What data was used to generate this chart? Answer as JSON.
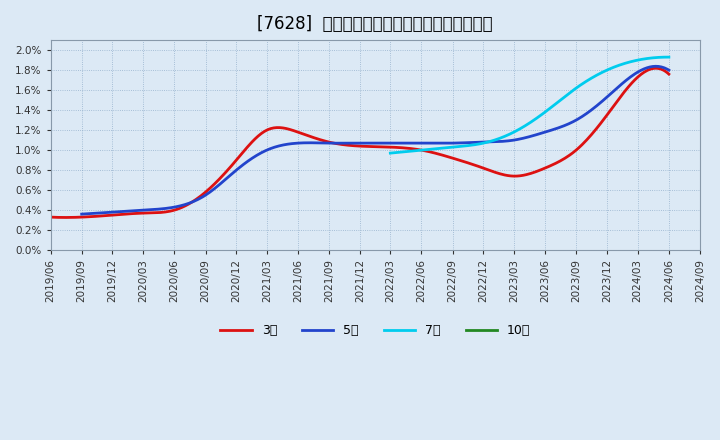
{
  "title": "[7628]  当期純利益マージンの標準偏差の推移",
  "background_color": "#dce9f5",
  "plot_bg_color": "#dce9f5",
  "grid_color": "#7799bb",
  "ylim": [
    0.0,
    0.021
  ],
  "yticks": [
    0.0,
    0.002,
    0.004,
    0.006,
    0.008,
    0.01,
    0.012,
    0.014,
    0.016,
    0.018,
    0.02
  ],
  "ytick_labels": [
    "0.0%",
    "0.2%",
    "0.4%",
    "0.6%",
    "0.8%",
    "1.0%",
    "1.2%",
    "1.4%",
    "1.6%",
    "1.8%",
    "2.0%"
  ],
  "series_3year": {
    "color": "#dd1111",
    "label": "3年",
    "dates": [
      "2019-06-01",
      "2019-09-01",
      "2019-12-01",
      "2020-03-01",
      "2020-06-01",
      "2020-09-01",
      "2020-12-01",
      "2021-03-01",
      "2021-06-01",
      "2021-09-01",
      "2021-12-01",
      "2022-03-01",
      "2022-06-01",
      "2022-09-01",
      "2022-12-01",
      "2023-03-01",
      "2023-06-01",
      "2023-09-01",
      "2023-12-01",
      "2024-03-01",
      "2024-06-01"
    ],
    "values": [
      0.0033,
      0.0033,
      0.0035,
      0.0037,
      0.004,
      0.0058,
      0.009,
      0.012,
      0.0118,
      0.0108,
      0.0104,
      0.0103,
      0.01,
      0.0092,
      0.0082,
      0.0074,
      0.0082,
      0.01,
      0.0135,
      0.0173,
      0.0176
    ]
  },
  "series_5year": {
    "color": "#2244cc",
    "label": "5年",
    "dates": [
      "2019-09-01",
      "2019-12-01",
      "2020-03-01",
      "2020-06-01",
      "2020-09-01",
      "2020-12-01",
      "2021-03-01",
      "2021-06-01",
      "2021-09-01",
      "2021-12-01",
      "2022-03-01",
      "2022-06-01",
      "2022-09-01",
      "2022-12-01",
      "2023-03-01",
      "2023-06-01",
      "2023-09-01",
      "2023-12-01",
      "2024-03-01",
      "2024-06-01"
    ],
    "values": [
      0.0036,
      0.0038,
      0.004,
      0.0043,
      0.0055,
      0.008,
      0.01,
      0.0107,
      0.0107,
      0.0107,
      0.0107,
      0.0107,
      0.0107,
      0.0108,
      0.011,
      0.0118,
      0.013,
      0.0153,
      0.0178,
      0.018
    ]
  },
  "series_7year": {
    "color": "#00ccee",
    "label": "7年",
    "dates": [
      "2022-03-01",
      "2022-06-01",
      "2022-09-01",
      "2022-12-01",
      "2023-03-01",
      "2023-06-01",
      "2023-09-01",
      "2023-12-01",
      "2024-03-01",
      "2024-06-01"
    ],
    "values": [
      0.0097,
      0.01,
      0.0103,
      0.0107,
      0.0118,
      0.0138,
      0.0162,
      0.018,
      0.019,
      0.0193
    ]
  },
  "series_10year": {
    "color": "#228822",
    "label": "10年",
    "dates": [],
    "values": []
  },
  "xtick_dates": [
    "2019/06",
    "2019/09",
    "2019/12",
    "2020/03",
    "2020/06",
    "2020/09",
    "2020/12",
    "2021/03",
    "2021/06",
    "2021/09",
    "2021/12",
    "2022/03",
    "2022/06",
    "2022/09",
    "2022/12",
    "2023/03",
    "2023/06",
    "2023/09",
    "2023/12",
    "2024/03",
    "2024/06",
    "2024/09"
  ],
  "xmin": "2019-06-01",
  "xmax": "2024-09-01",
  "title_fontsize": 12,
  "tick_fontsize": 7.5
}
